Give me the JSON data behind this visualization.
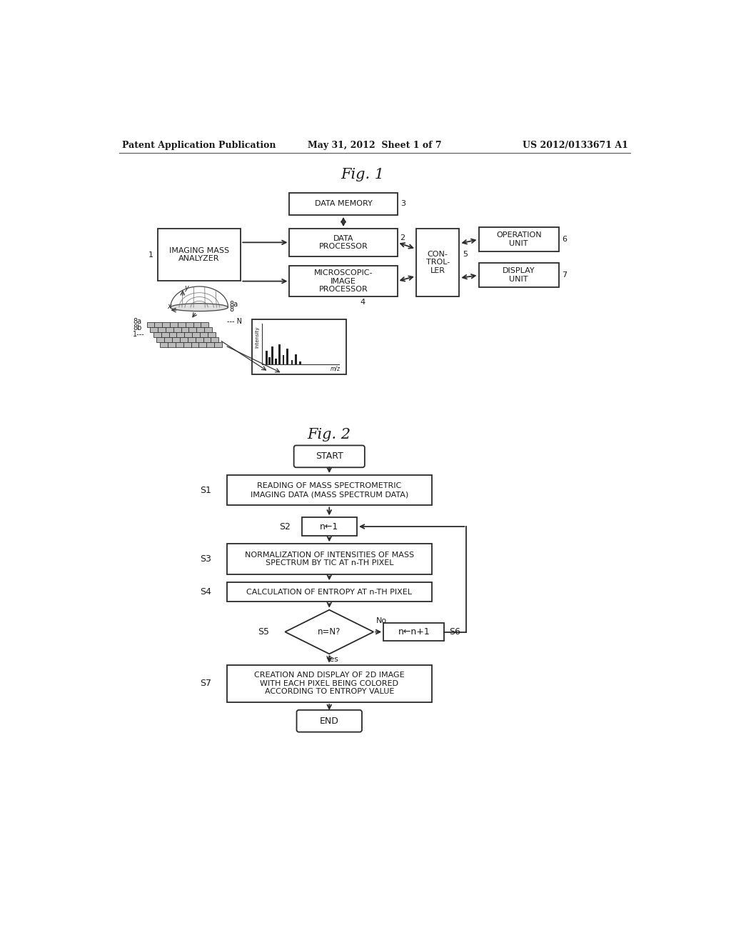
{
  "background_color": "#ffffff",
  "header_left": "Patent Application Publication",
  "header_center": "May 31, 2012  Sheet 1 of 7",
  "header_right": "US 2012/0133671 A1",
  "fig1_title": "Fig. 1",
  "fig2_title": "Fig. 2",
  "text_color": "#1a1a1a",
  "box_edge_color": "#2a2a2a",
  "box_fill": "#ffffff",
  "arrow_color": "#2a2a2a",
  "line_width": 1.3,
  "font_size_label": 7.5,
  "font_size_step": 8.5,
  "font_size_title": 15
}
